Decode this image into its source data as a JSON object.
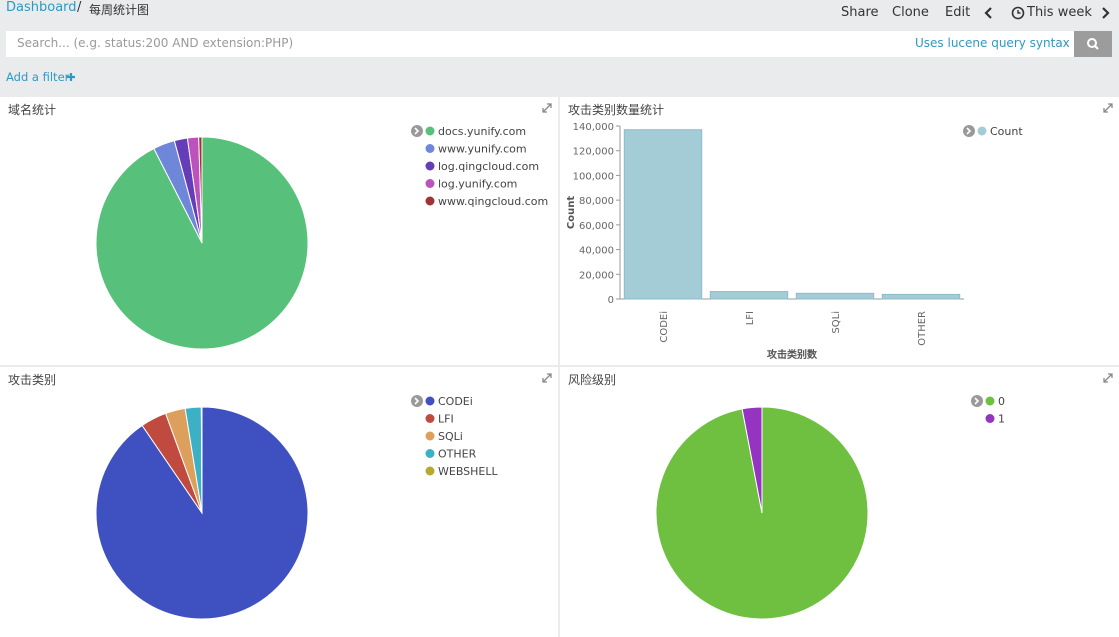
{
  "header": {
    "breadcrumb": [
      "Dashboard",
      "每周统计图"
    ],
    "breadcrumb_separator": "/",
    "actions": [
      "Share",
      "Clone",
      "Edit"
    ],
    "time_range": "This week"
  },
  "search": {
    "placeholder": "Search... (e.g. status:200 AND extension:PHP)",
    "syntax_link": "Uses lucene query syntax"
  },
  "filter_bar": {
    "add_filter": "Add a filter"
  },
  "chart_data": [
    {
      "type": "pie",
      "title": "域名统计",
      "categories": [
        "docs.yunify.com",
        "www.yunify.com",
        "log.qingcloud.com",
        "log.yunify.com",
        "www.qingcloud.com"
      ],
      "values": [
        92.5,
        3.3,
        2.0,
        1.7,
        0.5
      ],
      "colors": [
        "#57c17b",
        "#6f87d8",
        "#663db8",
        "#bc52bc",
        "#9e3533"
      ]
    },
    {
      "type": "bar",
      "title": "攻击类别数量统计",
      "categories": [
        "CODEi",
        "LFI",
        "SQLi",
        "OTHER"
      ],
      "series": [
        {
          "name": "Count",
          "color": "#a3ccd6",
          "values": [
            137000,
            6000,
            4600,
            3700
          ]
        }
      ],
      "ylim": [
        0,
        140000
      ],
      "yticks": [
        0,
        {
          "value": 20000,
          "label": "20,000"
        },
        {
          "value": 40000,
          "label": "40,000"
        },
        {
          "value": 60000,
          "label": "60,000"
        },
        {
          "value": 80000,
          "label": "80,000"
        },
        {
          "value": 100000,
          "label": "100,000"
        },
        {
          "value": 120000,
          "label": "120,000"
        },
        {
          "value": 140000,
          "label": "140,000"
        }
      ],
      "ylabel": "Count",
      "xlabel": "攻击类别数"
    },
    {
      "type": "pie",
      "title": "攻击类别",
      "categories": [
        "CODEi",
        "LFI",
        "SQLi",
        "OTHER",
        "WEBSHELL"
      ],
      "values": [
        137000,
        6000,
        4600,
        3700,
        150
      ],
      "colors": [
        "#3f51c0",
        "#c14a40",
        "#dda05c",
        "#3cb1c5",
        "#b8a830"
      ]
    },
    {
      "type": "pie",
      "title": "风险级别",
      "categories": [
        "0",
        "1"
      ],
      "values": [
        97,
        3
      ],
      "colors": [
        "#6fbf40",
        "#9434c0"
      ]
    }
  ]
}
